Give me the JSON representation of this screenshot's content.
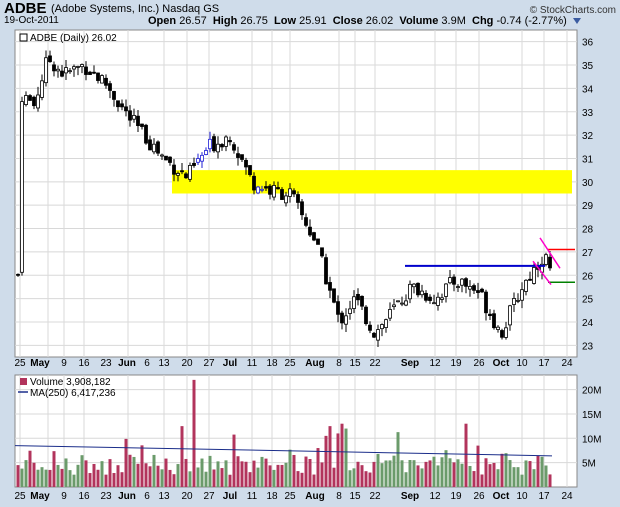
{
  "header": {
    "symbol": "ADBE",
    "name": "(Adobe Systems, Inc.)  Nasdaq GS",
    "date": "19-Oct-2011",
    "credit": "© StockCharts.com",
    "open_label": "Open",
    "open": "26.57",
    "high_label": "High",
    "high": "26.75",
    "low_label": "Low",
    "low": "25.91",
    "close_label": "Close",
    "close": "26.02",
    "volume_label": "Volume",
    "volume": "3.9M",
    "chg_label": "Chg",
    "chg": "-0.74 (-2.77%)"
  },
  "price_legend": "ADBE (Daily) 26.02",
  "volume_legend": "Volume 3,908,182",
  "ma_legend": "MA(250) 6,417,236",
  "colors": {
    "up": "#ffffff",
    "down": "#000000",
    "blue_candle": "#1d1dd6",
    "vol_up": "#6b9b6b",
    "vol_down": "#b2345c",
    "ma": "#1a2d8a",
    "zone": "#ffff00",
    "resistance": "#0000cc",
    "pennant": "#ff00cc",
    "red_line": "#ff0000",
    "green_line": "#008000"
  },
  "chart_data": [
    {
      "type": "candlestick",
      "title": "ADBE (Daily) 26.02",
      "ylim": [
        22.5,
        36.5
      ],
      "yticks": [
        23,
        24,
        25,
        26,
        27,
        28,
        29,
        30,
        31,
        32,
        33,
        34,
        35,
        36
      ],
      "x_dates": [
        "Apr 25",
        "May 9",
        "May 16",
        "May 23",
        "Jun 6",
        "Jun 13",
        "Jun 20",
        "Jun 27",
        "Jul 11",
        "Jul 18",
        "Jul 25",
        "Aug 8",
        "Aug 15",
        "Aug 22",
        "Sep 12",
        "Sep 19",
        "Sep 26",
        "Oct 10",
        "Oct 17",
        "Oct 24"
      ],
      "x_tick_labels": [
        "25",
        "May",
        "9",
        "16",
        "23",
        "Jun",
        "6",
        "13",
        "20",
        "27",
        "Jul",
        "11",
        "18",
        "25",
        "Aug",
        "8",
        "15",
        "22",
        "Sep",
        "12",
        "19",
        "26",
        "Oct",
        "10",
        "17",
        "24"
      ],
      "close_path_approx": [
        {
          "date": "Apr 25",
          "close": 33.8
        },
        {
          "date": "May 2",
          "close": 33.3
        },
        {
          "date": "May 9",
          "close": 35.3
        },
        {
          "date": "May 16",
          "close": 34.6
        },
        {
          "date": "May 23",
          "close": 35.0
        },
        {
          "date": "May 31",
          "close": 34.2
        },
        {
          "date": "Jun 6",
          "close": 32.8
        },
        {
          "date": "Jun 13",
          "close": 31.0
        },
        {
          "date": "Jun 20",
          "close": 30.2
        },
        {
          "date": "Jun 27",
          "close": 31.5
        },
        {
          "date": "Jul 5",
          "close": 32.0
        },
        {
          "date": "Jul 11",
          "close": 30.0
        },
        {
          "date": "Jul 18",
          "close": 29.6
        },
        {
          "date": "Jul 25",
          "close": 29.5
        },
        {
          "date": "Aug 1",
          "close": 27.5
        },
        {
          "date": "Aug 8",
          "close": 24.0
        },
        {
          "date": "Aug 15",
          "close": 25.0
        },
        {
          "date": "Aug 22",
          "close": 23.5
        },
        {
          "date": "Aug 29",
          "close": 24.5
        },
        {
          "date": "Sep 5",
          "close": 25.5
        },
        {
          "date": "Sep 12",
          "close": 25.0
        },
        {
          "date": "Sep 19",
          "close": 25.8
        },
        {
          "date": "Sep 26",
          "close": 25.3
        },
        {
          "date": "Oct 3",
          "close": 23.5
        },
        {
          "date": "Oct 10",
          "close": 25.5
        },
        {
          "date": "Oct 17",
          "close": 26.9
        },
        {
          "date": "Oct 19",
          "close": 26.02
        }
      ],
      "annotations": {
        "support_zone": [
          29.5,
          30.5
        ],
        "resistance_level": 26.4,
        "red_level": 27.1,
        "green_level": 25.7
      }
    },
    {
      "type": "bar",
      "title": "Volume 3,908,182",
      "yticks_labels": [
        "5M",
        "10M",
        "15M",
        "20M"
      ],
      "ylim": [
        0,
        23000000
      ],
      "ma_series": {
        "name": "MA(250) 6,417,236",
        "start": 8500000,
        "end": 6400000
      }
    }
  ]
}
